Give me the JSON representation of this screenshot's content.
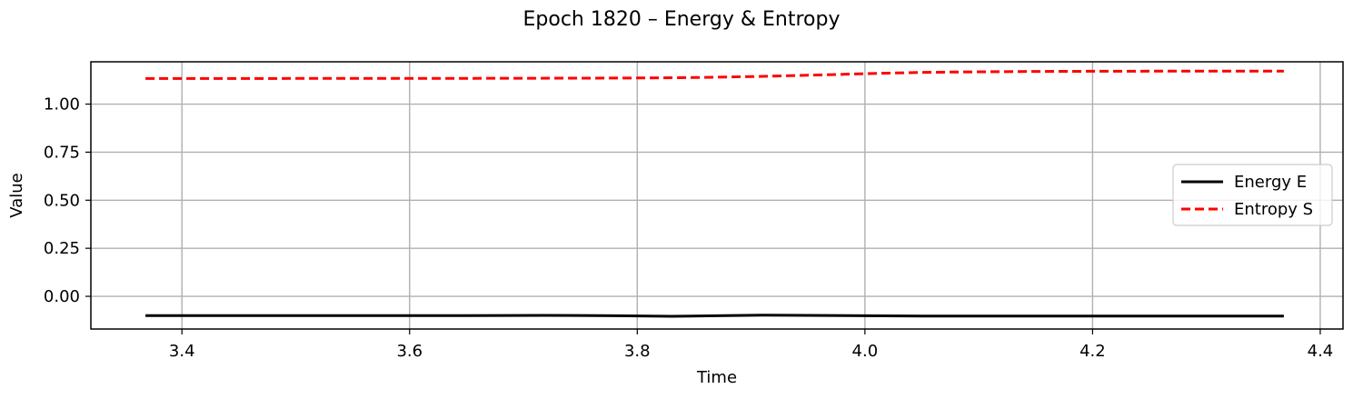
{
  "chart_data": {
    "type": "line",
    "title": "Epoch 1820 – Energy & Entropy",
    "xlabel": "Time",
    "ylabel": "Value",
    "xlim": [
      3.32,
      4.42
    ],
    "ylim": [
      -0.17,
      1.22
    ],
    "xticks": [
      3.4,
      3.6,
      3.8,
      4.0,
      4.2,
      4.4
    ],
    "xtick_labels": [
      "3.4",
      "3.6",
      "3.8",
      "4.0",
      "4.2",
      "4.4"
    ],
    "yticks": [
      0.0,
      0.25,
      0.5,
      0.75,
      1.0
    ],
    "ytick_labels": [
      "0.00",
      "0.25",
      "0.50",
      "0.75",
      "1.00"
    ],
    "grid": true,
    "legend": "center-right",
    "series": [
      {
        "name": "Energy E",
        "color": "#000000",
        "style": "solid",
        "x": [
          3.368,
          3.45,
          3.55,
          3.65,
          3.72,
          3.78,
          3.83,
          3.87,
          3.91,
          3.95,
          4.0,
          4.05,
          4.1,
          4.2,
          4.3,
          4.368
        ],
        "y": [
          -0.1,
          -0.1,
          -0.1,
          -0.1,
          -0.099,
          -0.101,
          -0.104,
          -0.101,
          -0.098,
          -0.099,
          -0.101,
          -0.103,
          -0.103,
          -0.103,
          -0.103,
          -0.103
        ]
      },
      {
        "name": "Entropy S",
        "color": "#ff0000",
        "style": "dashed",
        "x": [
          3.368,
          3.45,
          3.55,
          3.65,
          3.75,
          3.8,
          3.85,
          3.9,
          3.95,
          4.0,
          4.05,
          4.1,
          4.15,
          4.2,
          4.3,
          4.368
        ],
        "y": [
          1.133,
          1.133,
          1.134,
          1.134,
          1.135,
          1.136,
          1.138,
          1.143,
          1.15,
          1.158,
          1.165,
          1.168,
          1.17,
          1.171,
          1.172,
          1.172
        ]
      }
    ]
  }
}
